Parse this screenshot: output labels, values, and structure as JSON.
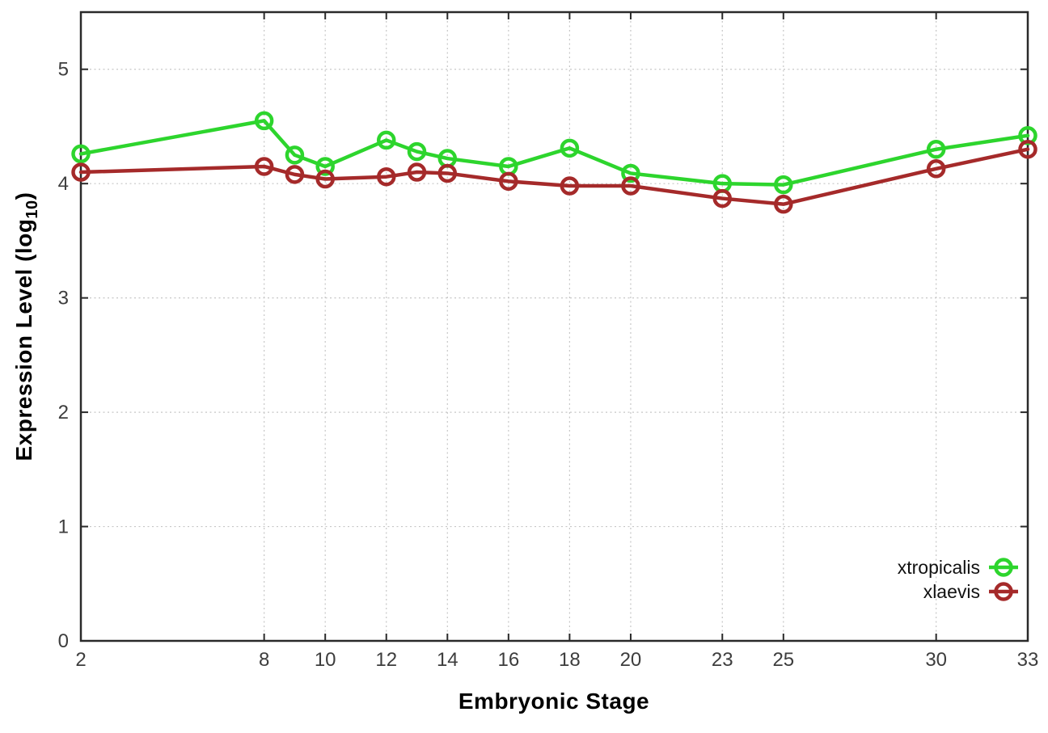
{
  "figure": {
    "background": "#ffffff",
    "xlabel": "Embryonic Stage",
    "ylabel_parts": {
      "prefix": "Expression Level (log",
      "sub": "10",
      "suffix": ")"
    }
  },
  "chart_data": {
    "type": "line",
    "title": "",
    "xlabel": "Embryonic Stage",
    "ylabel": "Expression Level (log10)",
    "x": [
      2,
      8,
      9,
      10,
      12,
      13,
      14,
      16,
      18,
      20,
      23,
      25,
      30,
      33
    ],
    "xtick_labels": [
      2,
      8,
      10,
      12,
      14,
      16,
      18,
      20,
      23,
      25,
      30,
      33
    ],
    "ytick_labels": [
      0,
      1,
      2,
      3,
      4,
      5
    ],
    "xlim": [
      2,
      33
    ],
    "ylim": [
      0,
      5.5
    ],
    "grid": true,
    "grid_color": "#c6c6c6",
    "axis_color": "#2a2a2a",
    "tick_label_color": "#3d3d3d",
    "legend_position": "bottom-right-inside",
    "marker": "open-circle",
    "series": [
      {
        "name": "xtropicalis",
        "color": "#2dd52d",
        "values": [
          4.26,
          4.55,
          4.25,
          4.15,
          4.38,
          4.28,
          4.22,
          4.15,
          4.31,
          4.09,
          4.0,
          3.99,
          4.3,
          4.42
        ]
      },
      {
        "name": "xlaevis",
        "color": "#a52a2a",
        "values": [
          4.1,
          4.15,
          4.08,
          4.04,
          4.06,
          4.1,
          4.09,
          4.02,
          3.98,
          3.98,
          3.87,
          3.82,
          4.13,
          4.3
        ]
      }
    ]
  }
}
